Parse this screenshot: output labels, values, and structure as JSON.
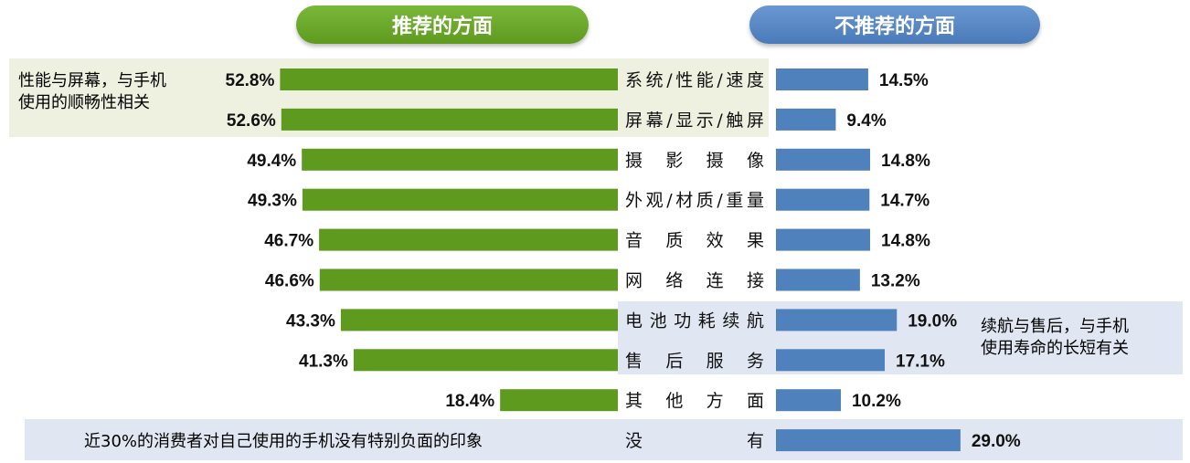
{
  "header": {
    "recommended_label": "推荐的方面",
    "not_recommended_label": "不推荐的方面"
  },
  "notes": {
    "top": [
      "性能与屏幕，与手机",
      "使用的顺畅性相关"
    ],
    "mid": [
      "续航与售后，与手机",
      "使用寿命的长短有关"
    ],
    "bottom": "近30%的消费者对自己使用的手机没有特别负面的印象"
  },
  "colors": {
    "green": "#5e9a1e",
    "blue": "#4f81bd",
    "highlight_green": "#eef0e0",
    "highlight_blue": "#e0e7f2"
  },
  "chart_data": {
    "type": "bar",
    "orientation": "horizontal-butterfly",
    "categories": [
      "系统/性能/速度",
      "屏幕/显示/触屏",
      "摄 影 摄 像",
      "外观/材质/重量",
      "音 质 效 果",
      "网 络 连 接",
      "电池功耗续航",
      "售 后 服 务",
      "其 他 方 面",
      "没 有"
    ],
    "series": [
      {
        "name": "推荐的方面",
        "values": [
          52.8,
          52.6,
          49.4,
          49.3,
          46.7,
          46.6,
          43.3,
          41.3,
          18.4,
          null
        ],
        "labels": [
          "52.8%",
          "52.6%",
          "49.4%",
          "49.3%",
          "46.7%",
          "46.6%",
          "43.3%",
          "41.3%",
          "18.4%",
          ""
        ]
      },
      {
        "name": "不推荐的方面",
        "values": [
          14.5,
          9.4,
          14.8,
          14.7,
          14.8,
          13.2,
          19.0,
          17.1,
          10.2,
          29.0
        ],
        "labels": [
          "14.5%",
          "9.4%",
          "14.8%",
          "14.7%",
          "14.8%",
          "13.2%",
          "19.0%",
          "17.1%",
          "10.2%",
          "29.0%"
        ]
      }
    ],
    "unit": "%"
  }
}
